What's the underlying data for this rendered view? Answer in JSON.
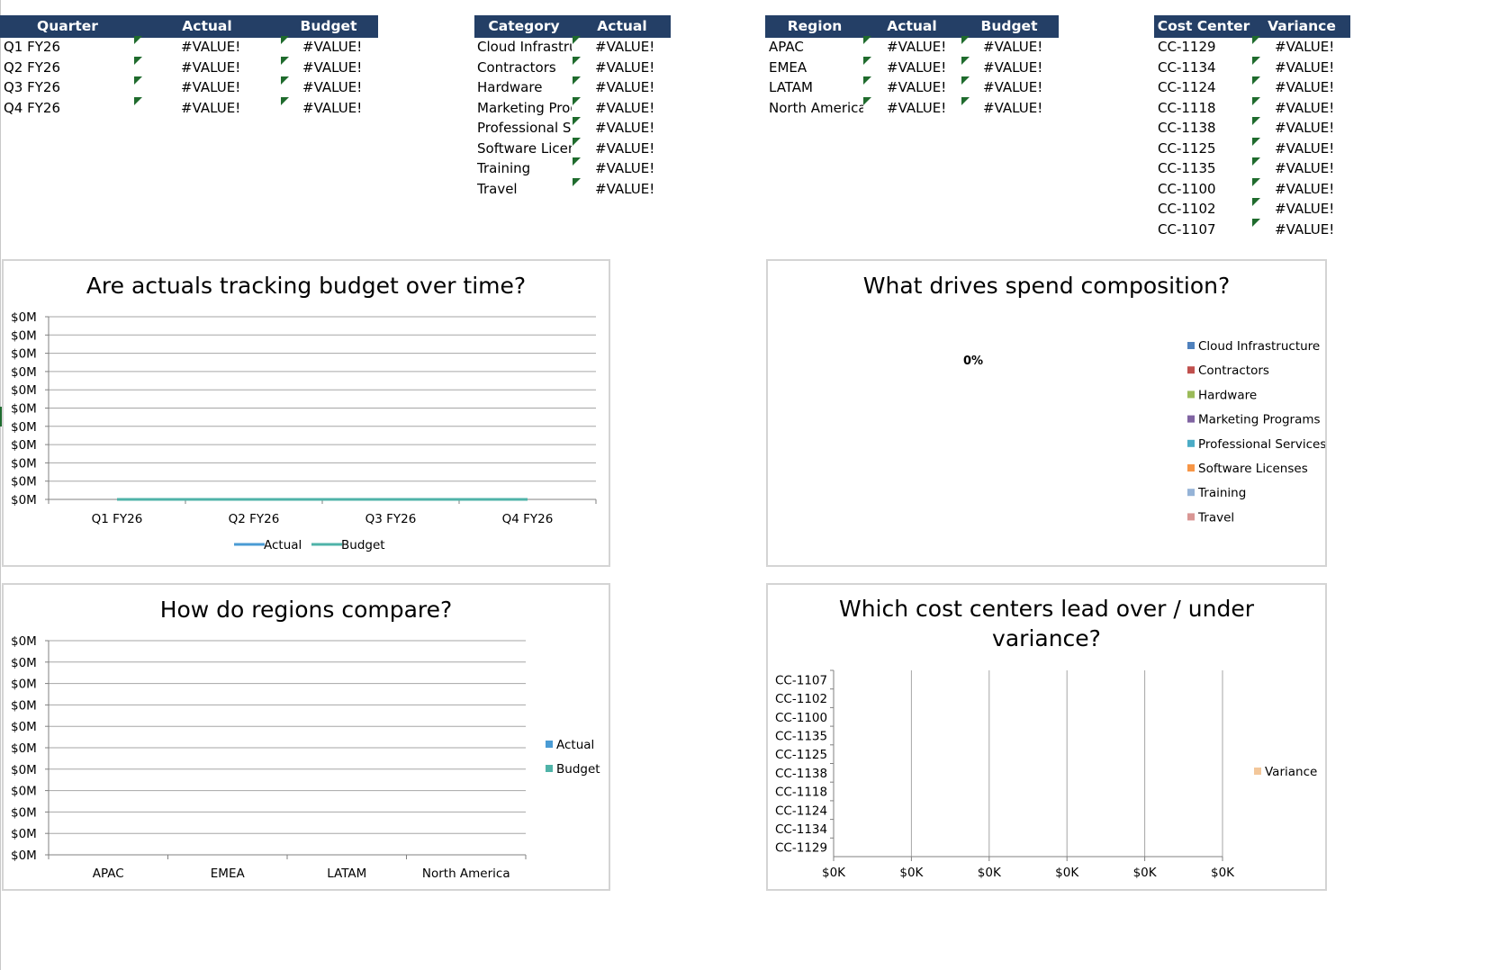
{
  "tables": {
    "quarter": {
      "headers": [
        "Quarter",
        "Actual",
        "Budget"
      ],
      "rows": [
        [
          "Q1 FY26",
          "#VALUE!",
          "#VALUE!"
        ],
        [
          "Q2 FY26",
          "#VALUE!",
          "#VALUE!"
        ],
        [
          "Q3 FY26",
          "#VALUE!",
          "#VALUE!"
        ],
        [
          "Q4 FY26",
          "#VALUE!",
          "#VALUE!"
        ]
      ]
    },
    "category": {
      "headers": [
        "Category",
        "Actual"
      ],
      "rows": [
        [
          "Cloud Infrastructure",
          "#VALUE!"
        ],
        [
          "Contractors",
          "#VALUE!"
        ],
        [
          "Hardware",
          "#VALUE!"
        ],
        [
          "Marketing Programs",
          "#VALUE!"
        ],
        [
          "Professional Services",
          "#VALUE!"
        ],
        [
          "Software Licenses",
          "#VALUE!"
        ],
        [
          "Training",
          "#VALUE!"
        ],
        [
          "Travel",
          "#VALUE!"
        ]
      ]
    },
    "region": {
      "headers": [
        "Region",
        "Actual",
        "Budget"
      ],
      "rows": [
        [
          "APAC",
          "#VALUE!",
          "#VALUE!"
        ],
        [
          "EMEA",
          "#VALUE!",
          "#VALUE!"
        ],
        [
          "LATAM",
          "#VALUE!",
          "#VALUE!"
        ],
        [
          "North America",
          "#VALUE!",
          "#VALUE!"
        ]
      ]
    },
    "costcenter": {
      "headers": [
        "Cost Center",
        "Variance"
      ],
      "rows": [
        [
          "CC-1129",
          "#VALUE!"
        ],
        [
          "CC-1134",
          "#VALUE!"
        ],
        [
          "CC-1124",
          "#VALUE!"
        ],
        [
          "CC-1118",
          "#VALUE!"
        ],
        [
          "CC-1138",
          "#VALUE!"
        ],
        [
          "CC-1125",
          "#VALUE!"
        ],
        [
          "CC-1135",
          "#VALUE!"
        ],
        [
          "CC-1100",
          "#VALUE!"
        ],
        [
          "CC-1102",
          "#VALUE!"
        ],
        [
          "CC-1107",
          "#VALUE!"
        ]
      ]
    }
  },
  "colors": {
    "header_bg": "#243f66",
    "error_marker": "#1f6b2d",
    "actual": "#4a9bd4",
    "budget": "#4fb3a8",
    "variance": "#f3c79a",
    "grid": "#a6a6a6"
  },
  "chart_data": [
    {
      "type": "line",
      "title": "Are actuals tracking budget over time?",
      "categories": [
        "Q1 FY26",
        "Q2 FY26",
        "Q3 FY26",
        "Q4 FY26"
      ],
      "ytick_labels": [
        "$0M",
        "$0M",
        "$0M",
        "$0M",
        "$0M",
        "$0M",
        "$0M",
        "$0M",
        "$0M",
        "$0M",
        "$0M"
      ],
      "series": [
        {
          "name": "Actual",
          "values": [
            0,
            0,
            0,
            0
          ],
          "color": "#4a9bd4"
        },
        {
          "name": "Budget",
          "values": [
            0,
            0,
            0,
            0
          ],
          "color": "#4fb3a8"
        }
      ],
      "ylim": [
        0,
        10
      ],
      "grid": true,
      "legend": "bottom"
    },
    {
      "type": "pie",
      "title": "What drives spend composition?",
      "data_label": "0%",
      "labels": [
        "Cloud Infrastructure",
        "Contractors",
        "Hardware",
        "Marketing Programs",
        "Professional Services",
        "Software Licenses",
        "Training",
        "Travel"
      ],
      "colors": [
        "#4f81bd",
        "#c0504d",
        "#9bbb59",
        "#8064a2",
        "#4bacc6",
        "#f79646",
        "#95b3d7",
        "#d99694"
      ],
      "values": [
        0,
        0,
        0,
        0,
        0,
        0,
        0,
        0
      ],
      "legend": "right"
    },
    {
      "type": "bar",
      "title": "How do regions compare?",
      "categories": [
        "APAC",
        "EMEA",
        "LATAM",
        "North America"
      ],
      "ytick_labels": [
        "$0M",
        "$0M",
        "$0M",
        "$0M",
        "$0M",
        "$0M",
        "$0M",
        "$0M",
        "$0M",
        "$0M",
        "$0M"
      ],
      "series": [
        {
          "name": "Actual",
          "values": [
            0,
            0,
            0,
            0
          ],
          "color": "#4a9bd4"
        },
        {
          "name": "Budget",
          "values": [
            0,
            0,
            0,
            0
          ],
          "color": "#4fb3a8"
        }
      ],
      "ylim": [
        0,
        10
      ],
      "grid": true,
      "legend": "right"
    },
    {
      "type": "bar",
      "orientation": "horizontal",
      "title": "Which cost centers lead over / under variance?",
      "categories": [
        "CC-1107",
        "CC-1102",
        "CC-1100",
        "CC-1135",
        "CC-1125",
        "CC-1138",
        "CC-1118",
        "CC-1124",
        "CC-1134",
        "CC-1129"
      ],
      "xtick_labels": [
        "$0K",
        "$0K",
        "$0K",
        "$0K",
        "$0K",
        "$0K"
      ],
      "series": [
        {
          "name": "Variance",
          "values": [
            0,
            0,
            0,
            0,
            0,
            0,
            0,
            0,
            0,
            0
          ],
          "color": "#f3c79a"
        }
      ],
      "grid": true,
      "legend": "right"
    }
  ]
}
